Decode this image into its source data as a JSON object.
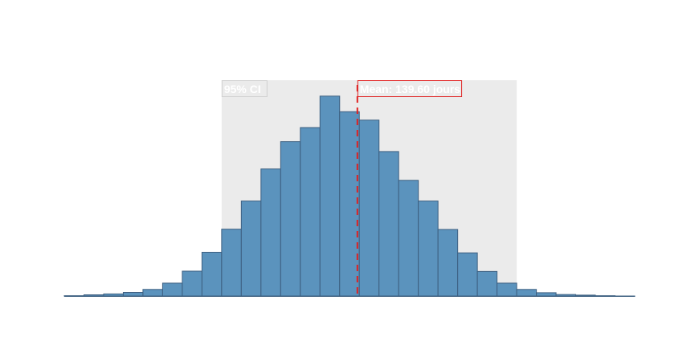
{
  "chart_data": {
    "type": "bar",
    "title": "",
    "xlabel": "",
    "ylabel": "",
    "x_range": [
      1,
      30
    ],
    "bin_edges": [
      1,
      2,
      3,
      4,
      5,
      6,
      7,
      8,
      9,
      10,
      11,
      12,
      13,
      14,
      15,
      16,
      17,
      18,
      19,
      20,
      21,
      22,
      23,
      24,
      25,
      26,
      27,
      28,
      29,
      30
    ],
    "values": [
      0.001,
      0.004,
      0.007,
      0.012,
      0.022,
      0.043,
      0.083,
      0.146,
      0.223,
      0.317,
      0.424,
      0.515,
      0.562,
      0.667,
      0.615,
      0.587,
      0.482,
      0.386,
      0.317,
      0.222,
      0.144,
      0.082,
      0.043,
      0.022,
      0.011,
      0.005,
      0.003,
      0.001,
      0.0
    ],
    "ylim": [
      0,
      0.72
    ],
    "ci_band": {
      "start_bin": 8,
      "end_bin": 23,
      "label": "95% CI"
    },
    "mean_line": {
      "bin_position": 15.9,
      "label": "Mean: 139.60 jours"
    },
    "colors": {
      "bar_fill": "#5b93bd",
      "bar_stroke": "#3d5f80",
      "ci_band": "#ebebeb",
      "mean_line": "#e02020",
      "label_text": "#ffffff"
    }
  }
}
